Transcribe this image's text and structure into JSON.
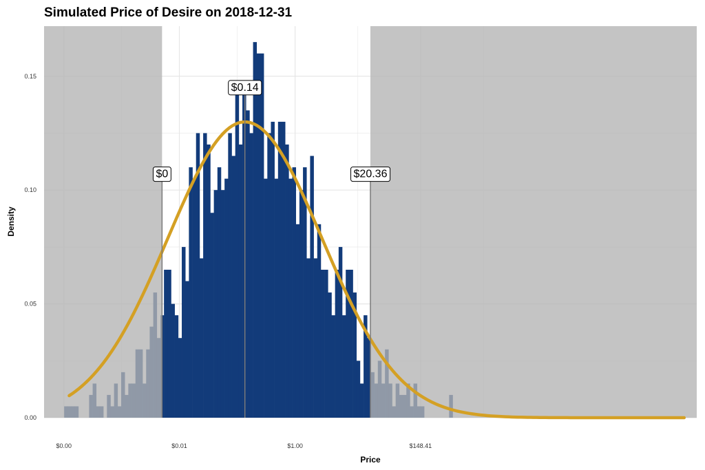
{
  "chart_data": {
    "type": "bar",
    "title": "Simulated Price of Desire on 2018-12-31",
    "xlabel": "Price",
    "ylabel": "Density",
    "x_scale": "log",
    "ylim": [
      0,
      0.172
    ],
    "x_ticks": [
      "$0.00",
      "$0.01",
      "$1.00",
      "$148.41"
    ],
    "y_ticks": [
      "0.00",
      "0.05",
      "0.10",
      "0.15"
    ],
    "grid": true,
    "bins_log_price": {
      "start": -9.2,
      "width": 0.142,
      "densities": [
        0.005,
        0.005,
        0.005,
        0.005,
        0,
        0,
        0,
        0.01,
        0.015,
        0.005,
        0.005,
        0,
        0.01,
        0.005,
        0.015,
        0.005,
        0.02,
        0.01,
        0.015,
        0.015,
        0.03,
        0.03,
        0.015,
        0.03,
        0.04,
        0.055,
        0.035,
        0.045,
        0.065,
        0.065,
        0.05,
        0.045,
        0.035,
        0.075,
        0.06,
        0.11,
        0.105,
        0.125,
        0.07,
        0.125,
        0.12,
        0.09,
        0.1,
        0.11,
        0.1,
        0.105,
        0.125,
        0.115,
        0.145,
        0.12,
        0.145,
        0.135,
        0.125,
        0.165,
        0.16,
        0.16,
        0.105,
        0.125,
        0.13,
        0.105,
        0.13,
        0.13,
        0.12,
        0.105,
        0.11,
        0.085,
        0.1,
        0.11,
        0.07,
        0.115,
        0.07,
        0.085,
        0.065,
        0.065,
        0.055,
        0.045,
        0.065,
        0.075,
        0.045,
        0.065,
        0.065,
        0.055,
        0.025,
        0.015,
        0.045,
        0.035,
        0.02,
        0.015,
        0.025,
        0.015,
        0.03,
        0.015,
        0.005,
        0.015,
        0.01,
        0.01,
        0.015,
        0.005,
        0.015,
        0.005,
        0.005,
        0,
        0,
        0,
        0,
        0,
        0,
        0,
        0.01
      ]
    },
    "normal_fit_log_price": {
      "mean": -2.0,
      "sd": 3.07
    },
    "interval_log_price": [
      -5.3,
      3.0
    ],
    "annotations": [
      {
        "label": "$0",
        "x_log": -5.3,
        "y": 0.105
      },
      {
        "label": "$0.14",
        "x_log": -2.0,
        "y": 0.143
      },
      {
        "label": "$20.36",
        "x_log": 3.0,
        "y": 0.105
      }
    ],
    "colors": {
      "bars": "#123b7a",
      "curve": "#d4a024",
      "shade": "#b3b3b3",
      "panel": "#ffffff",
      "grid": "#e6e6e6"
    }
  }
}
